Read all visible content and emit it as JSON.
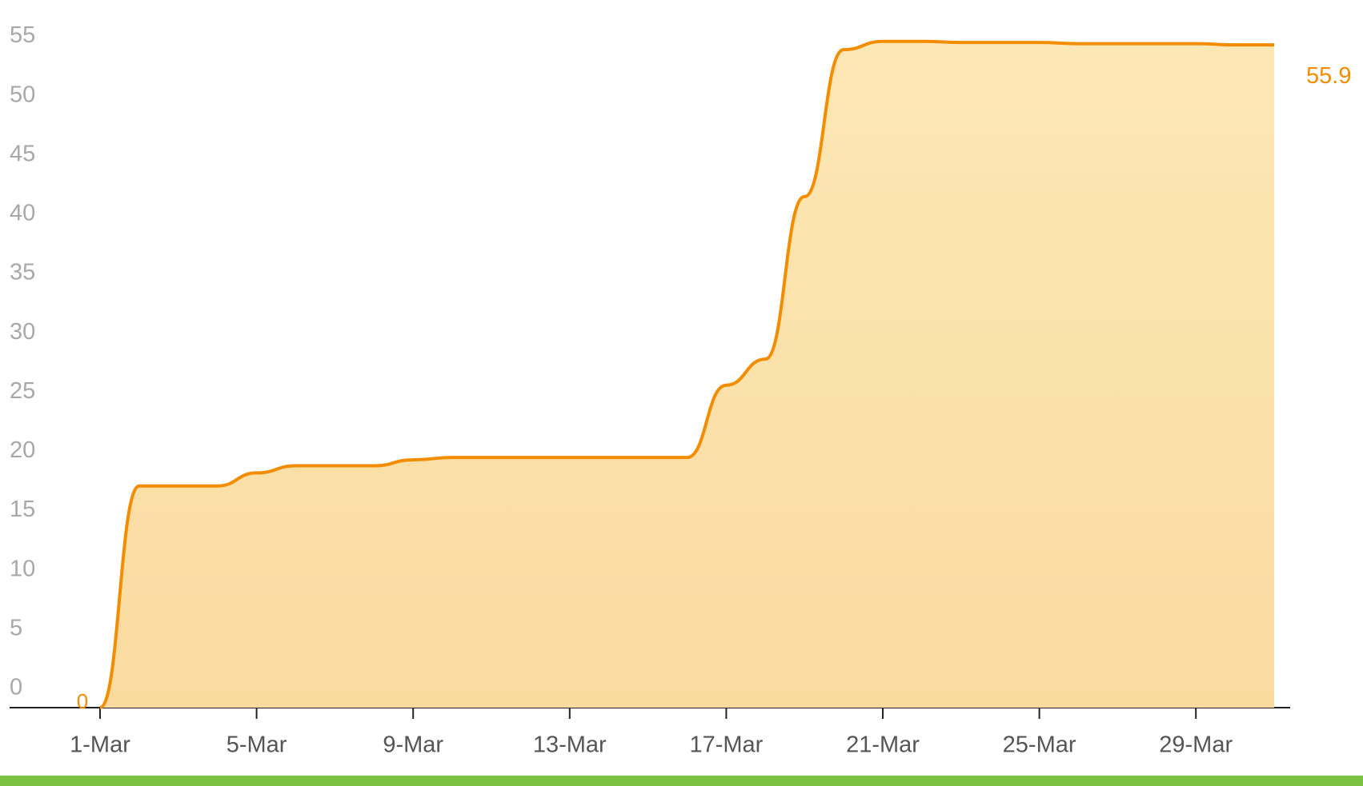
{
  "chart_data": {
    "type": "area",
    "categories": [
      "1-Mar",
      null,
      null,
      null,
      "5-Mar",
      null,
      null,
      null,
      "9-Mar",
      null,
      null,
      null,
      "13-Mar",
      null,
      null,
      null,
      "17-Mar",
      null,
      null,
      null,
      "21-Mar",
      null,
      null,
      null,
      "25-Mar",
      null,
      null,
      null,
      "29-Mar",
      null,
      null
    ],
    "series": [
      {
        "color": "#f28c00",
        "values": [
          0,
          18.7,
          18.7,
          18.7,
          19.8,
          20.4,
          20.4,
          20.4,
          20.9,
          21.1,
          21.1,
          21.1,
          21.1,
          21.1,
          21.1,
          21.1,
          27.2,
          29.4,
          43.1,
          55.5,
          56.2,
          56.2,
          56.1,
          56.1,
          56.1,
          56.0,
          56.0,
          56.0,
          56.0,
          55.9,
          55.9
        ],
        "value_labels": [
          "0",
          null,
          null,
          null,
          null,
          null,
          null,
          null,
          null,
          null,
          null,
          null,
          null,
          null,
          null,
          null,
          null,
          null,
          null,
          null,
          null,
          null,
          null,
          null,
          null,
          null,
          null,
          null,
          null,
          null,
          "55.9"
        ]
      }
    ],
    "ylim": [
      0,
      58
    ],
    "yticks": [
      0,
      5,
      10,
      15,
      20,
      25,
      30,
      35,
      40,
      45,
      50,
      55
    ],
    "grid": false
  }
}
